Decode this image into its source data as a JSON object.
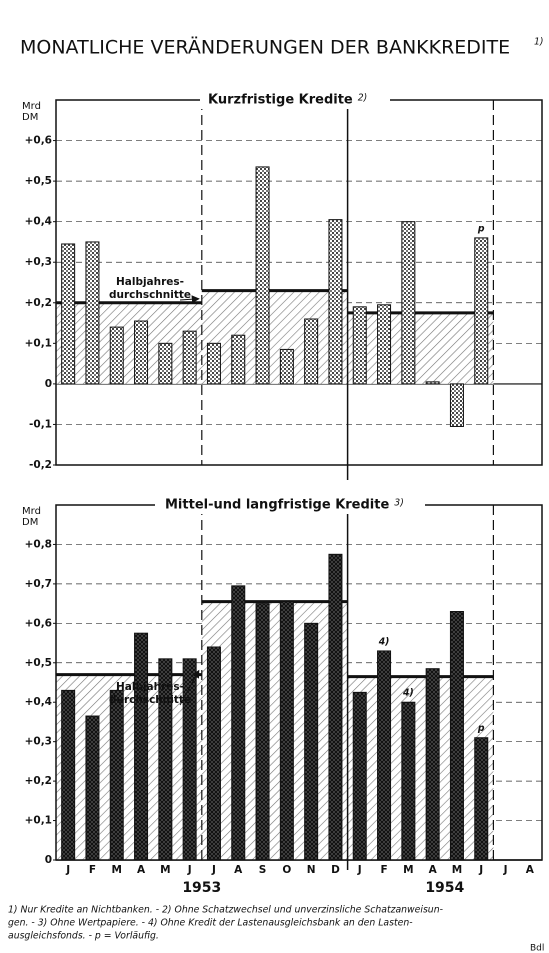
{
  "title": "MONATLICHE VERÄNDERUNGEN DER BANKKREDITE",
  "title_note": "1)",
  "chart_data": [
    {
      "type": "bar",
      "title": "Kurzfristige Kredite",
      "title_note": "2)",
      "y_label": [
        "Mrd",
        "DM"
      ],
      "values": [
        0.345,
        0.35,
        0.14,
        0.155,
        0.1,
        0.13,
        0.1,
        0.12,
        0.535,
        0.085,
        0.16,
        0.405,
        0.19,
        0.195,
        0.4,
        0.005,
        -0.105,
        0.36,
        null,
        null
      ],
      "averages": [
        0.2,
        0.23,
        0.175
      ],
      "annotation": [
        "Halbjahres-",
        "durchschnitte"
      ],
      "bar_notes": [
        {
          "category_index": 17,
          "text": "p"
        }
      ],
      "ylim": [
        -0.2,
        0.7
      ],
      "yticks": [
        {
          "value": -0.2,
          "label": "-0,2"
        },
        {
          "value": -0.1,
          "label": "-0,1"
        },
        0,
        {
          "value": 0.1,
          "label": "+0,1"
        },
        {
          "value": 0.2,
          "label": "+0,2"
        },
        {
          "value": 0.3,
          "label": "+0,3"
        },
        {
          "value": 0.4,
          "label": "+0,4"
        },
        {
          "value": 0.5,
          "label": "+0,5"
        },
        {
          "value": 0.6,
          "label": "+0,6"
        }
      ],
      "grid": true
    },
    {
      "type": "bar",
      "title": "Mittel-und langfristige Kredite",
      "title_note": "3)",
      "y_label": [
        "Mrd",
        "DM"
      ],
      "categories": [
        "J",
        "F",
        "M",
        "A",
        "M",
        "J",
        "J",
        "A",
        "S",
        "O",
        "N",
        "D",
        "J",
        "F",
        "M",
        "A",
        "M",
        "J",
        "J",
        "A"
      ],
      "years": [
        "1953",
        "1954"
      ],
      "values": [
        0.43,
        0.365,
        0.43,
        0.575,
        0.51,
        0.51,
        0.54,
        0.695,
        0.65,
        0.655,
        0.6,
        0.775,
        0.425,
        0.53,
        0.4,
        0.485,
        0.63,
        0.31,
        null,
        null
      ],
      "averages": [
        0.47,
        0.655,
        0.465
      ],
      "annotation": [
        "Halbjahres-",
        "durchschnitte"
      ],
      "bar_notes": [
        {
          "category_index": 13,
          "text": "4)"
        },
        {
          "category_index": 14,
          "text": "4)"
        },
        {
          "category_index": 17,
          "text": "p"
        }
      ],
      "ylim": [
        0,
        0.9
      ],
      "yticks": [
        0,
        {
          "value": 0.1,
          "label": "+0,1"
        },
        {
          "value": 0.2,
          "label": "+0,2"
        },
        {
          "value": 0.3,
          "label": "+0,3"
        },
        {
          "value": 0.4,
          "label": "+0,4"
        },
        {
          "value": 0.5,
          "label": "+0,5"
        },
        {
          "value": 0.6,
          "label": "+0,6"
        },
        {
          "value": 0.7,
          "label": "+0,7"
        },
        {
          "value": 0.8,
          "label": "+0,8"
        }
      ],
      "grid": true
    }
  ],
  "footnotes": [
    "1) Nur Kredite an Nichtbanken. - 2) Ohne Schatzwechsel und unverzinsliche Schatzanweisun-",
    "gen. - 3) Ohne Wertpapiere. - 4) Ohne Kredit der Lastenausgleichsbank an den Lasten-",
    "ausgleichsfonds. - p = Vorläufig."
  ],
  "credit": "Bdl"
}
